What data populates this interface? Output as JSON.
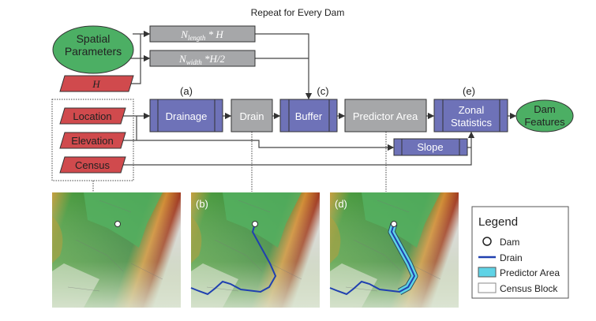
{
  "title": "Repeat for Every Dam",
  "inputs": {
    "spatial_parameters": [
      "Spatial",
      "Parameters"
    ],
    "h": "H",
    "location": "Location",
    "elevation": "Elevation",
    "census": "Census"
  },
  "formulas": {
    "length": {
      "base": "N",
      "sub": "length",
      "rest": " * H"
    },
    "width": {
      "base": "N",
      "sub": "width",
      "rest": " *H/2"
    }
  },
  "steps": {
    "drainage": "Drainage",
    "drain": "Drain",
    "buffer": "Buffer",
    "predictor_area": "Predictor Area",
    "zonal_statistics": [
      "Zonal",
      "Statistics"
    ],
    "slope": "Slope",
    "dam_features": [
      "Dam",
      "Features"
    ]
  },
  "step_labels": {
    "a": "(a)",
    "c": "(c)",
    "e": "(e)",
    "b": "(b)",
    "d": "(d)"
  },
  "legend": {
    "title": "Legend",
    "items": [
      "Dam",
      "Drain",
      "Predictor Area",
      "Census Block"
    ]
  },
  "colors": {
    "process": "#6e72b8",
    "data_gray": "#a6a7a9",
    "input_red": "#d04a4d",
    "terminal_green": "#4caf64",
    "drain_blue": "#2040b0",
    "predictor_cyan": "#5fd3e6"
  }
}
